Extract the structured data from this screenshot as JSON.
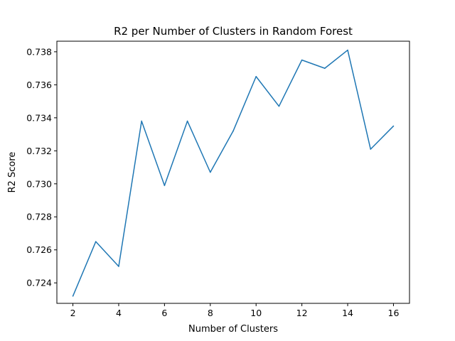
{
  "chart_data": {
    "type": "line",
    "title": "R2 per Number of Clusters in Random Forest",
    "xlabel": "Number of Clusters",
    "ylabel": "R2 Score",
    "x": [
      2,
      3,
      4,
      5,
      6,
      7,
      8,
      9,
      10,
      11,
      12,
      13,
      14,
      15,
      16
    ],
    "series": [
      {
        "values": [
          0.7232,
          0.7265,
          0.725,
          0.7338,
          0.7299,
          0.7338,
          0.7307,
          0.7332,
          0.7365,
          0.7347,
          0.7375,
          0.737,
          0.7381,
          0.7321,
          0.7335
        ],
        "color": "#1f77b4"
      }
    ],
    "xlim": [
      1.3,
      16.7
    ],
    "ylim": [
      0.72276,
      0.73864
    ],
    "xticks": [
      "2",
      "4",
      "6",
      "8",
      "10",
      "12",
      "14",
      "16"
    ],
    "yticks": [
      "0.724",
      "0.726",
      "0.728",
      "0.730",
      "0.732",
      "0.734",
      "0.736",
      "0.738"
    ],
    "grid": false
  }
}
